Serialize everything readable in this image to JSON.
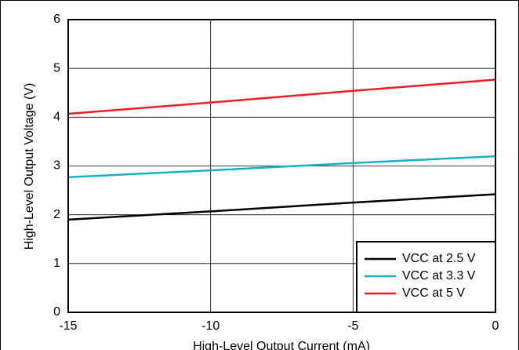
{
  "chart_data": {
    "type": "line",
    "x_label": "High-Level Output Current (mA)",
    "y_label": "High-Level Output Voltage (V)",
    "x": [
      -15,
      -10,
      -5,
      0
    ],
    "series": [
      {
        "name": "VCC at 2.5 V",
        "color": "#000000",
        "values": [
          1.9,
          2.07,
          2.25,
          2.42
        ]
      },
      {
        "name": "VCC at 3.3 V",
        "color": "#16b3c6",
        "values": [
          2.77,
          2.91,
          3.06,
          3.2
        ]
      },
      {
        "name": "VCC at 5 V",
        "color": "#ee1c24",
        "values": [
          4.07,
          4.3,
          4.54,
          4.77
        ]
      }
    ],
    "xlim": [
      -15,
      0
    ],
    "xticks": [
      -15,
      -10,
      -5,
      0
    ],
    "ylim": [
      0,
      6
    ],
    "yticks": [
      0,
      1,
      2,
      3,
      4,
      5,
      6
    ],
    "grid": true,
    "legend": "lower right"
  }
}
